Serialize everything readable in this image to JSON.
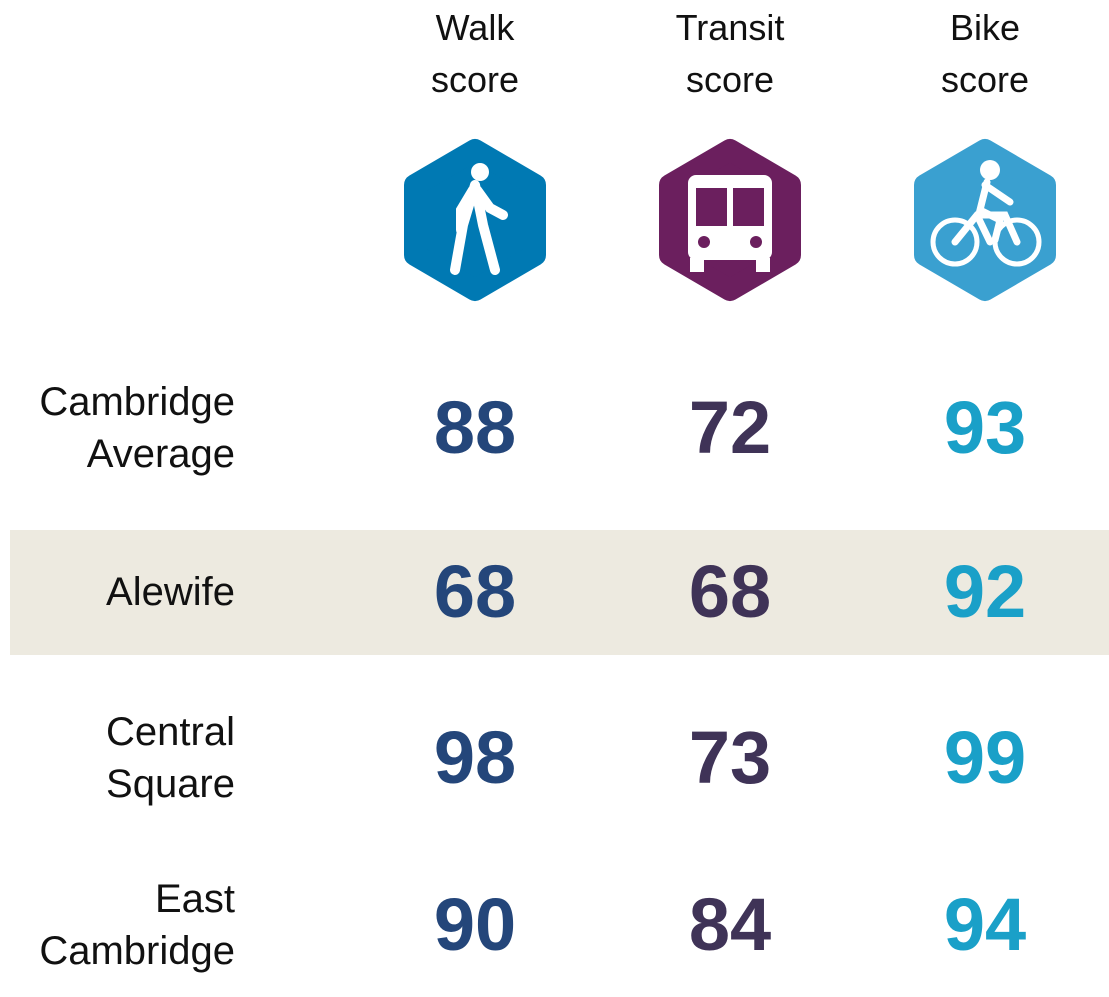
{
  "columns": [
    {
      "label": "Walk score",
      "color": "#24467a",
      "icon_color": "#0079b3"
    },
    {
      "label": "Transit score",
      "color": "#3f3357",
      "icon_color": "#6b1f5e"
    },
    {
      "label": "Bike score",
      "color": "#1aa0c8",
      "icon_color": "#3aa0d0"
    }
  ],
  "rows": [
    {
      "label": "Cambridge Average",
      "values": [
        88,
        72,
        93
      ]
    },
    {
      "label": "Alewife",
      "values": [
        68,
        68,
        92
      ],
      "highlight": true
    },
    {
      "label": "Central Square",
      "values": [
        98,
        73,
        99
      ]
    },
    {
      "label": "East Cambridge",
      "values": [
        90,
        84,
        94
      ]
    }
  ]
}
